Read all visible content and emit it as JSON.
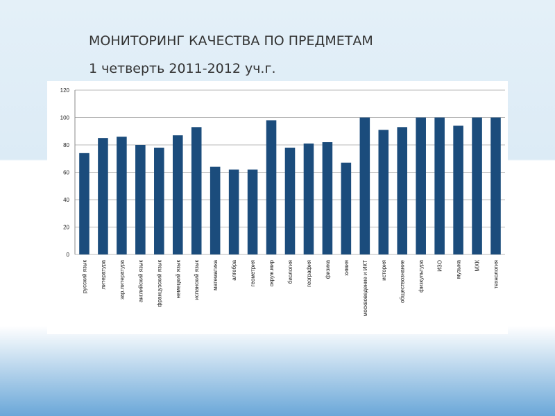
{
  "chart_data": {
    "type": "bar",
    "title": "МОНИТОРИНГ КАЧЕСТВА ПО ПРЕДМЕТАМ",
    "subtitle": "1 четверть 2011-2012 уч.г.",
    "categories": [
      "русский язык",
      "литература",
      "зар.литература",
      "английский язык",
      "французский язык",
      "немецкий язык",
      "испанский язык",
      "математика",
      "алгебра",
      "геометрия",
      "окруж.мир",
      "биология",
      "география",
      "физика",
      "химия",
      "москвоведение и ИКТ",
      "история",
      "обществознание",
      "физкультура",
      "ИЗО",
      "музыка",
      "МХК",
      "технология"
    ],
    "values": [
      74,
      85,
      86,
      80,
      78,
      87,
      93,
      64,
      62,
      62,
      98,
      78,
      81,
      82,
      67,
      100,
      91,
      93,
      100,
      100,
      94,
      100,
      100
    ],
    "color": "#1b4c7c",
    "ylim": [
      0,
      120
    ],
    "yticks": [
      0,
      20,
      40,
      60,
      80,
      100,
      120
    ],
    "grid": true
  }
}
